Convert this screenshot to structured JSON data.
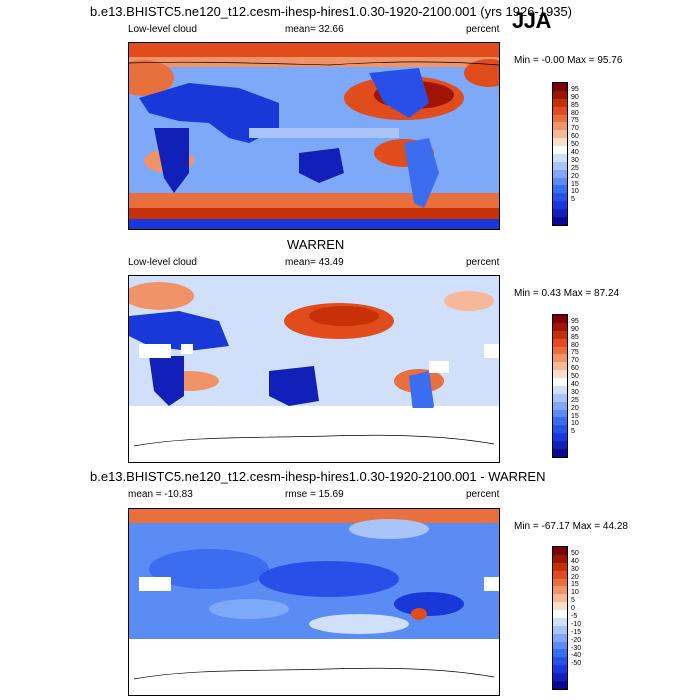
{
  "season": "JJA",
  "palette_abs": [
    "#08088c",
    "#1020b8",
    "#1838d8",
    "#2850e8",
    "#3c6cf0",
    "#5a8cf4",
    "#7ea8f8",
    "#a8c4f8",
    "#d0e0fa",
    "#ffffff",
    "#f8dccc",
    "#f5b898",
    "#f09468",
    "#e8703c",
    "#e04c1c",
    "#c83008",
    "#a01404",
    "#780000"
  ],
  "palette_diff": [
    "#08088c",
    "#1020b8",
    "#1838d8",
    "#2850e8",
    "#3c6cf0",
    "#5a8cf4",
    "#7ea8f8",
    "#a8c4f8",
    "#d0e0fa",
    "#ffffff",
    "#f8dccc",
    "#f5b898",
    "#f09468",
    "#e8703c",
    "#e04c1c",
    "#c83008",
    "#a01404",
    "#780000"
  ],
  "panels": [
    {
      "title": "b.e13.BHISTC5.ne120_t12.cesm-ihesp-hires1.0.30-1920-2100.001 (yrs 1926-1935)",
      "variable": "Low-level cloud",
      "mean_text": "mean=  32.66",
      "units": "percent",
      "minmax": "Min =  -0.00 Max =  95.76",
      "ticks": [
        "95",
        "90",
        "85",
        "80",
        "75",
        "70",
        "60",
        "50",
        "40",
        "30",
        "25",
        "20",
        "15",
        "10",
        "5"
      ]
    },
    {
      "title": "WARREN",
      "variable": "Low-level cloud",
      "mean_text": "mean=  43.49",
      "units": "percent",
      "minmax": "Min =   0.43 Max =  87.24",
      "ticks": [
        "95",
        "90",
        "85",
        "80",
        "75",
        "70",
        "60",
        "50",
        "40",
        "30",
        "25",
        "20",
        "15",
        "10",
        "5"
      ]
    },
    {
      "title": "b.e13.BHISTC5.ne120_t12.cesm-ihesp-hires1.0.30-1920-2100.001 - WARREN",
      "variable": "mean = -10.83",
      "mean_text": "rmse =  15.69",
      "units": "percent",
      "minmax": "Min = -67.17 Max =  44.28",
      "ticks": [
        "50",
        "40",
        "30",
        "20",
        "15",
        "10",
        "5",
        "0",
        "-5",
        "-10",
        "-15",
        "-20",
        "-30",
        "-40",
        "-50"
      ]
    }
  ]
}
